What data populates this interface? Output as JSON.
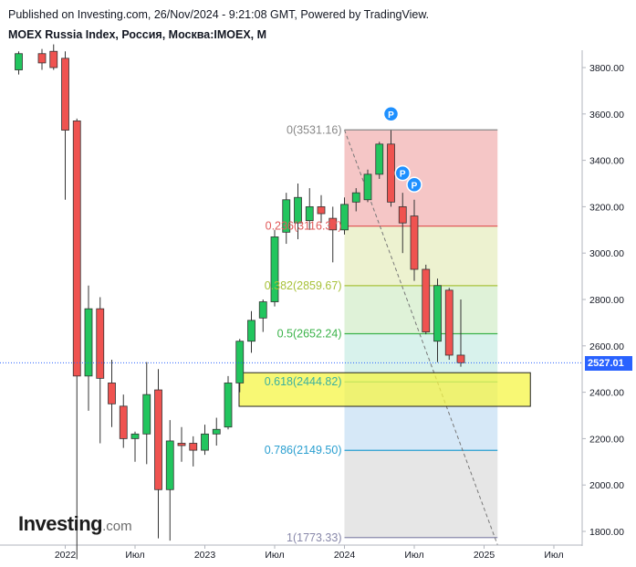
{
  "header": {
    "published": "Published on Investing.com, 26/Nov/2024 - 9:21:08 GMT, Powered by TradingView.",
    "title": "MOEX Russia Index, Россия, Москва:IMOEX, M"
  },
  "logo": {
    "word": "Investing",
    "domain": ".com"
  },
  "colors": {
    "up": "#089981",
    "up_fill": "#22c55e",
    "down": "#ef5350",
    "price_line": "#2962ff",
    "badge": "#1e90ff"
  },
  "chart_data": {
    "type": "candlestick",
    "interval": "M",
    "ylim": [
      1720,
      3900
    ],
    "y_ticks": [
      "1800.00",
      "2000.00",
      "2200.00",
      "2400.00",
      "2600.00",
      "2800.00",
      "3000.00",
      "3200.00",
      "3400.00",
      "3600.00",
      "3800.00"
    ],
    "x_ticks": [
      "2022",
      "Июл",
      "2023",
      "Июл",
      "2024",
      "Июл",
      "2025",
      "Июл"
    ],
    "last_price": "2527.01",
    "candles": [
      {
        "d": "2021-09",
        "o": 3790,
        "h": 3870,
        "l": 3770,
        "c": 3860
      },
      {
        "d": "2021-11",
        "o": 3860,
        "h": 3880,
        "l": 3790,
        "c": 3820
      },
      {
        "d": "2021-12",
        "o": 3870,
        "h": 3900,
        "l": 3790,
        "c": 3800
      },
      {
        "d": "2022-01",
        "o": 3840,
        "h": 3870,
        "l": 3230,
        "c": 3530
      },
      {
        "d": "2022-02",
        "o": 3570,
        "h": 3580,
        "l": 1680,
        "c": 2470
      },
      {
        "d": "2022-03",
        "o": 2470,
        "h": 2860,
        "l": 2320,
        "c": 2760
      },
      {
        "d": "2022-04",
        "o": 2760,
        "h": 2810,
        "l": 2180,
        "c": 2460
      },
      {
        "d": "2022-05",
        "o": 2440,
        "h": 2540,
        "l": 2250,
        "c": 2350
      },
      {
        "d": "2022-06",
        "o": 2340,
        "h": 2390,
        "l": 2160,
        "c": 2200
      },
      {
        "d": "2022-07",
        "o": 2200,
        "h": 2230,
        "l": 2100,
        "c": 2220
      },
      {
        "d": "2022-08",
        "o": 2220,
        "h": 2530,
        "l": 2090,
        "c": 2390
      },
      {
        "d": "2022-09",
        "o": 2410,
        "h": 2500,
        "l": 1770,
        "c": 1980
      },
      {
        "d": "2022-10",
        "o": 1980,
        "h": 2280,
        "l": 1760,
        "c": 2190
      },
      {
        "d": "2022-11",
        "o": 2180,
        "h": 2250,
        "l": 2100,
        "c": 2170
      },
      {
        "d": "2022-12",
        "o": 2180,
        "h": 2210,
        "l": 2080,
        "c": 2150
      },
      {
        "d": "2023-01",
        "o": 2150,
        "h": 2260,
        "l": 2130,
        "c": 2220
      },
      {
        "d": "2023-02",
        "o": 2220,
        "h": 2290,
        "l": 2170,
        "c": 2240
      },
      {
        "d": "2023-03",
        "o": 2250,
        "h": 2470,
        "l": 2240,
        "c": 2440
      },
      {
        "d": "2023-04",
        "o": 2440,
        "h": 2630,
        "l": 2400,
        "c": 2620
      },
      {
        "d": "2023-05",
        "o": 2620,
        "h": 2750,
        "l": 2570,
        "c": 2710
      },
      {
        "d": "2023-06",
        "o": 2720,
        "h": 2800,
        "l": 2660,
        "c": 2790
      },
      {
        "d": "2023-07",
        "o": 2790,
        "h": 3100,
        "l": 2770,
        "c": 3070
      },
      {
        "d": "2023-08",
        "o": 3090,
        "h": 3260,
        "l": 3040,
        "c": 3230
      },
      {
        "d": "2023-09",
        "o": 3130,
        "h": 3300,
        "l": 3060,
        "c": 3240
      },
      {
        "d": "2023-10",
        "o": 3140,
        "h": 3280,
        "l": 3100,
        "c": 3200
      },
      {
        "d": "2023-11",
        "o": 3200,
        "h": 3250,
        "l": 3130,
        "c": 3170
      },
      {
        "d": "2023-12",
        "o": 3150,
        "h": 3200,
        "l": 2960,
        "c": 3100
      },
      {
        "d": "2024-01",
        "o": 3100,
        "h": 3240,
        "l": 3080,
        "c": 3210
      },
      {
        "d": "2024-02",
        "o": 3220,
        "h": 3280,
        "l": 3180,
        "c": 3260
      },
      {
        "d": "2024-03",
        "o": 3230,
        "h": 3360,
        "l": 3220,
        "c": 3340
      },
      {
        "d": "2024-04",
        "o": 3340,
        "h": 3480,
        "l": 3320,
        "c": 3470
      },
      {
        "d": "2024-05",
        "o": 3470,
        "h": 3530,
        "l": 3200,
        "c": 3220
      },
      {
        "d": "2024-06",
        "o": 3200,
        "h": 3260,
        "l": 3000,
        "c": 3130
      },
      {
        "d": "2024-07",
        "o": 3160,
        "h": 3230,
        "l": 2880,
        "c": 2930
      },
      {
        "d": "2024-08",
        "o": 2930,
        "h": 2950,
        "l": 2650,
        "c": 2660
      },
      {
        "d": "2024-09",
        "o": 2620,
        "h": 2890,
        "l": 2530,
        "c": 2860
      },
      {
        "d": "2024-10",
        "o": 2840,
        "h": 2850,
        "l": 2540,
        "c": 2560
      },
      {
        "d": "2024-11",
        "o": 2560,
        "h": 2800,
        "l": 2510,
        "c": 2527
      }
    ],
    "fib": {
      "levels": [
        {
          "label": "0(3531.16)",
          "value": 3531.16,
          "color": "#888888",
          "fill": "#f5c6c6"
        },
        {
          "label": "0.236(3116.37)",
          "value": 3116.37,
          "color": "#e05a5a",
          "fill": "#edf2d0"
        },
        {
          "label": "0.382(2859.67)",
          "value": 2859.67,
          "color": "#a8c23a",
          "fill": "#dff2d8"
        },
        {
          "label": "0.5(2652.24)",
          "value": 2652.24,
          "color": "#3bb34a",
          "fill": "#d8f2ec"
        },
        {
          "label": "0.618(2444.82)",
          "value": 2444.82,
          "color": "#3ab0a0",
          "fill": "#d6e8f7"
        },
        {
          "label": "0.786(2149.50)",
          "value": 2149.5,
          "color": "#2a9fd0",
          "fill": "#e6e6e6"
        },
        {
          "label": "1(1773.33)",
          "value": 1773.33,
          "color": "#8888aa",
          "fill": null
        }
      ],
      "from": "2024-01",
      "to": "2025-02"
    },
    "highlight": {
      "y_top": 2500,
      "y_bottom": 2355,
      "from": "2023-04",
      "to": "2025-02",
      "fill": "#f5f545"
    },
    "badges": [
      {
        "d": "2024-05",
        "value": 3600,
        "label": "P"
      },
      {
        "d": "2024-06",
        "value": 3345,
        "label": "P"
      },
      {
        "d": "2024-07",
        "value": 3295,
        "label": "P"
      }
    ]
  }
}
